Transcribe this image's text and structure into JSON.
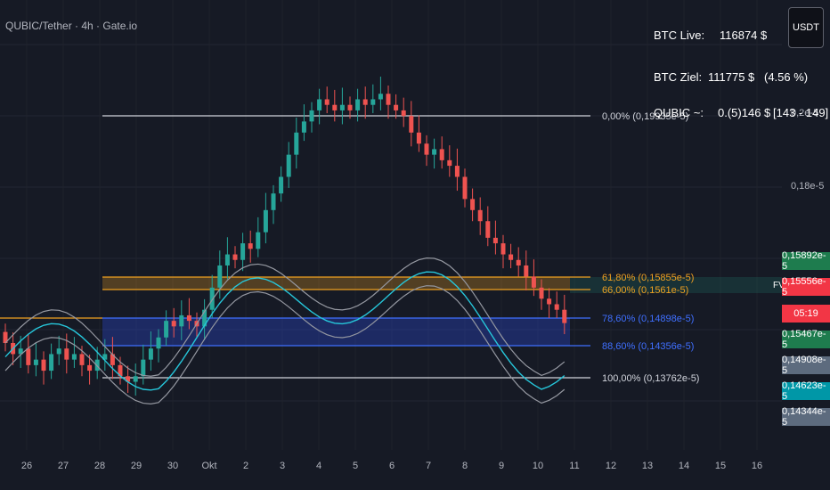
{
  "header": {
    "title": "QUBIC/Tether · 4h · Gate.io",
    "currency_button": "USDT"
  },
  "info_panel": {
    "btc_live_label": "BTC Live:",
    "btc_live_value": "116874 $",
    "btc_target_label": "BTC Ziel:",
    "btc_target_value": "111775 $",
    "btc_target_pct": "(4.56 %)",
    "qubic_label": "QUBIC ~:",
    "qubic_value": "0.(5)146 $",
    "qubic_range": "[143 - 149]"
  },
  "axis": {
    "y_labels": [
      "0,2e-5",
      "0,18e-5"
    ],
    "x_labels": [
      "26",
      "27",
      "28",
      "29",
      "30",
      "Okt",
      "2",
      "3",
      "4",
      "5",
      "6",
      "7",
      "8",
      "9",
      "10",
      "11",
      "12",
      "13",
      "14",
      "15",
      "16"
    ]
  },
  "price_tags": [
    {
      "text": "0,15892e-5",
      "color": "#1e7c4e"
    },
    {
      "text": "0,15556e-5",
      "color": "#f23645"
    },
    {
      "text": "05:19",
      "color": "#f23645"
    },
    {
      "text": "0,15467e-5",
      "color": "#1e7c4e"
    },
    {
      "text": "0,14908e-5",
      "color": "#5d6b7e"
    },
    {
      "text": "0,14623e-5",
      "color": "#0097a7"
    },
    {
      "text": "0,14344e-5",
      "color": "#5d6b7e"
    }
  ],
  "fib_levels": [
    {
      "label": "0,00% (0,19935e-5)",
      "color": "#d1d4dc"
    },
    {
      "label": "61,80% (0,15855e-5)",
      "color": "#f0a020"
    },
    {
      "label": "66,00% (0,1561e-5)",
      "color": "#f0a020"
    },
    {
      "label": "78,60% (0,14898e-5)",
      "color": "#3f6fff"
    },
    {
      "label": "88,60% (0,14356e-5)",
      "color": "#3f6fff"
    },
    {
      "label": "100,00% (0,13762e-5)",
      "color": "#d1d4dc"
    }
  ],
  "fvg_label": "FVG",
  "colors": {
    "up": "#26a69a",
    "down": "#ef5350",
    "background": "#161a25"
  },
  "chart_data": {
    "type": "candlestick",
    "interval": "4h",
    "note_values": "approximate close prices in units of 1e-5 USDT, read from chart",
    "closes": [
      0.152,
      0.15,
      0.151,
      0.148,
      0.149,
      0.147,
      0.15,
      0.151,
      0.149,
      0.15,
      0.148,
      0.147,
      0.149,
      0.15,
      0.148,
      0.146,
      0.145,
      0.146,
      0.149,
      0.151,
      0.153,
      0.156,
      0.155,
      0.157,
      0.156,
      0.155,
      0.158,
      0.162,
      0.166,
      0.168,
      0.167,
      0.17,
      0.169,
      0.172,
      0.176,
      0.179,
      0.182,
      0.186,
      0.19,
      0.192,
      0.194,
      0.196,
      0.195,
      0.194,
      0.195,
      0.194,
      0.196,
      0.195,
      0.196,
      0.197,
      0.195,
      0.194,
      0.193,
      0.19,
      0.188,
      0.186,
      0.187,
      0.185,
      0.184,
      0.182,
      0.178,
      0.176,
      0.174,
      0.171,
      0.17,
      0.168,
      0.167,
      0.166,
      0.164,
      0.162,
      0.16,
      0.159,
      0.158,
      0.1556
    ],
    "ylim": [
      0.1335,
      0.2075
    ]
  }
}
